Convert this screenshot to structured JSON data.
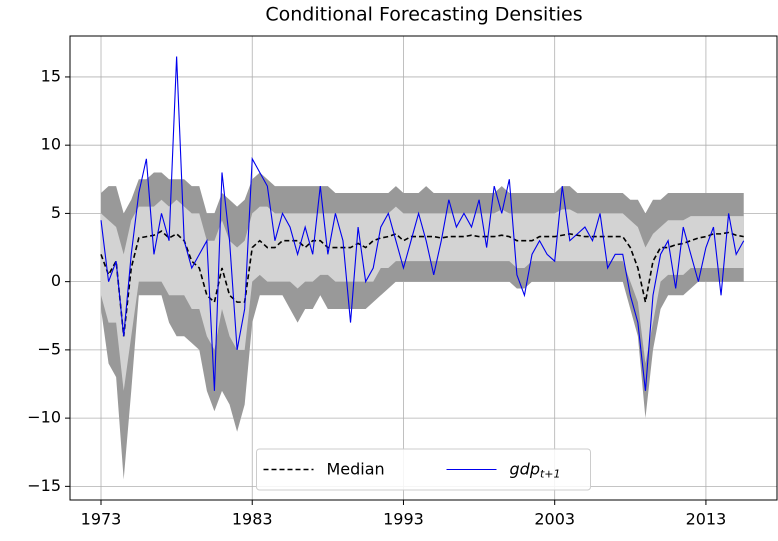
{
  "chart_data": {
    "type": "line",
    "title": "Conditional Forecasting Densities",
    "x": [
      1973,
      1973.5,
      1974,
      1974.5,
      1975,
      1975.5,
      1976,
      1976.5,
      1977,
      1977.5,
      1978,
      1978.5,
      1979,
      1979.5,
      1980,
      1980.5,
      1981,
      1981.5,
      1982,
      1982.5,
      1983,
      1983.5,
      1984,
      1984.5,
      1985,
      1985.5,
      1986,
      1986.5,
      1987,
      1987.5,
      1988,
      1988.5,
      1989,
      1989.5,
      1990,
      1990.5,
      1991,
      1991.5,
      1992,
      1992.5,
      1993,
      1993.5,
      1994,
      1994.5,
      1995,
      1995.5,
      1996,
      1996.5,
      1997,
      1997.5,
      1998,
      1998.5,
      1999,
      1999.5,
      2000,
      2000.5,
      2001,
      2001.5,
      2002,
      2002.5,
      2003,
      2003.5,
      2004,
      2004.5,
      2005,
      2005.5,
      2006,
      2006.5,
      2007,
      2007.5,
      2008,
      2008.5,
      2009,
      2009.5,
      2010,
      2010.5,
      2011,
      2011.5,
      2012,
      2012.5,
      2013,
      2013.5,
      2014,
      2014.5,
      2015,
      2015.5
    ],
    "bands": [
      {
        "color": "#999999",
        "lower": [
          -2,
          -6,
          -7,
          -14.5,
          -8,
          -1,
          -1,
          -1,
          -1,
          -3,
          -4,
          -4,
          -4.5,
          -5,
          -8,
          -9.5,
          -8,
          -9,
          -11,
          -9,
          -3,
          -1,
          -1,
          -1,
          -1,
          -2,
          -3,
          -2,
          -2,
          -1,
          -2,
          -2,
          -2,
          -2,
          -2,
          -2,
          -1.5,
          -1,
          -0.5,
          0,
          0,
          0,
          0,
          0,
          0,
          0,
          0,
          0,
          0,
          0,
          0,
          0,
          0,
          0,
          0,
          -0.5,
          -0.5,
          0,
          0,
          0,
          0,
          0,
          0,
          0,
          0,
          0,
          0,
          0,
          0,
          0,
          -2,
          -4,
          -10,
          -5,
          -2,
          -1,
          -1,
          -1,
          -0.5,
          0,
          0,
          0,
          0,
          0,
          0,
          0
        ],
        "upper": [
          6.5,
          7,
          7,
          5,
          6,
          7.5,
          7.5,
          8,
          8,
          7.5,
          7.5,
          7.5,
          7,
          7,
          5,
          5,
          6.5,
          6,
          5.5,
          6,
          7.5,
          8,
          7.5,
          7,
          7,
          7,
          7,
          7,
          7,
          7,
          7,
          6.5,
          6.5,
          6.5,
          6.5,
          6.5,
          6.5,
          6.5,
          6.5,
          7,
          6.5,
          6.5,
          6.5,
          7,
          6.5,
          6.5,
          6.5,
          6.5,
          6.5,
          6.5,
          6.5,
          6.5,
          6.5,
          7,
          6.5,
          6.5,
          6.5,
          6.5,
          6.5,
          6.5,
          6.5,
          7,
          7,
          6.5,
          6.5,
          6.5,
          6.5,
          6.5,
          6.5,
          6.5,
          6,
          6,
          5,
          6,
          6,
          6.5,
          6.5,
          6.5,
          6.5,
          6.5,
          6.5,
          6.5,
          6.5,
          6.5,
          6.5,
          6.5
        ]
      },
      {
        "color": "#d3d3d3",
        "lower": [
          -1,
          -3,
          -3,
          -8,
          -4,
          0,
          0,
          0,
          0,
          -1,
          -1,
          -1,
          -2,
          -2,
          -4,
          -5,
          -2,
          -4,
          -5,
          -5,
          0,
          0.5,
          0,
          0,
          0,
          0,
          -0.5,
          0,
          0,
          0.5,
          0.5,
          0,
          0,
          0,
          0,
          0,
          0,
          1,
          1,
          1.5,
          1.5,
          1.5,
          1.5,
          1.5,
          1.5,
          1.5,
          1.5,
          1.5,
          1.5,
          1.5,
          1.5,
          1.5,
          1.5,
          1.5,
          1.5,
          1,
          1,
          1.5,
          1.5,
          1.5,
          1.5,
          1.5,
          1.5,
          1.5,
          1.5,
          1.5,
          1.5,
          1.5,
          1.5,
          1.5,
          0,
          -1.5,
          -6,
          -3,
          0,
          0.5,
          0.5,
          0.5,
          1,
          1,
          1,
          1,
          1,
          1,
          1,
          1
        ],
        "upper": [
          5,
          4.5,
          4,
          2,
          4.5,
          5.5,
          5.5,
          5.5,
          6,
          5.5,
          6,
          5.5,
          5,
          5,
          3,
          3,
          4.5,
          3,
          2.5,
          3,
          5,
          5.5,
          5.5,
          5,
          5,
          5,
          5,
          5,
          5,
          5,
          5,
          5,
          5,
          5,
          5,
          5,
          5,
          5,
          5,
          5.5,
          5,
          5,
          5,
          5,
          5,
          5,
          5,
          5,
          5,
          5,
          5,
          5,
          5,
          5.3,
          5,
          5,
          5,
          5,
          5,
          5,
          5,
          5.3,
          5.3,
          5,
          5,
          5,
          5,
          5,
          5,
          5,
          4.5,
          4,
          2.5,
          3.5,
          4,
          4.5,
          4.5,
          4.5,
          4.8,
          4.8,
          4.8,
          4.8,
          4.8,
          4.8,
          4.8,
          4.8
        ]
      }
    ],
    "series": [
      {
        "name": "Median",
        "color": "#000000",
        "dash": true,
        "values": [
          2,
          0.5,
          1.5,
          -4,
          1,
          3.2,
          3.3,
          3.4,
          3.7,
          3.2,
          3.5,
          3,
          1.5,
          1,
          -1,
          -1.5,
          1,
          -1,
          -1.5,
          -1.5,
          2.5,
          3,
          2.5,
          2.5,
          3,
          3,
          3,
          2.5,
          3,
          3,
          2.5,
          2.5,
          2.5,
          2.5,
          2.8,
          2.5,
          3,
          3.2,
          3.3,
          3.5,
          3,
          3.3,
          3.3,
          3.3,
          3.3,
          3.2,
          3.3,
          3.3,
          3.3,
          3.4,
          3.3,
          3.3,
          3.3,
          3.4,
          3.3,
          3,
          3,
          3,
          3.3,
          3.3,
          3.3,
          3.4,
          3.5,
          3.4,
          3.3,
          3.3,
          3.3,
          3.3,
          3.3,
          3.3,
          2.5,
          1,
          -1.5,
          1.5,
          2.5,
          2.5,
          2.7,
          2.8,
          3,
          3.2,
          3.3,
          3.5,
          3.5,
          3.6,
          3.4,
          3.3
        ]
      },
      {
        "name": "gdp",
        "name_sub": "t+1",
        "color": "#0000ee",
        "dash": false,
        "values": [
          4.5,
          0,
          1.5,
          -4,
          2,
          6.5,
          9,
          2,
          5,
          3,
          16.5,
          3,
          1,
          2,
          3,
          -8,
          8,
          3,
          -5,
          -2,
          9,
          8,
          7,
          3,
          5,
          4,
          2,
          4,
          2,
          7,
          2,
          5,
          3,
          -3,
          4,
          0,
          1,
          4,
          5,
          3,
          1,
          3,
          5,
          3,
          0.5,
          3,
          6,
          4,
          5,
          4,
          6,
          2.5,
          7,
          5,
          7.5,
          0.5,
          -1,
          2,
          3,
          2,
          1.5,
          7,
          3,
          3.5,
          4,
          3,
          5,
          1,
          2,
          2,
          -1,
          -3,
          -8,
          -1,
          2,
          3,
          -0.5,
          4,
          2,
          0,
          2.5,
          4,
          -1,
          5,
          2,
          3
        ]
      }
    ],
    "xlim": [
      1970.95,
      2017.7
    ],
    "xticks": [
      1973,
      1983,
      1993,
      2003,
      2013
    ],
    "ylim": [
      -16,
      18
    ],
    "yticks": [
      {
        "value": -15,
        "label": "−15"
      },
      {
        "value": -10,
        "label": "−10"
      },
      {
        "value": -5,
        "label": "−5"
      },
      0,
      5,
      10,
      15
    ],
    "grid": true,
    "legend": "lower center"
  }
}
